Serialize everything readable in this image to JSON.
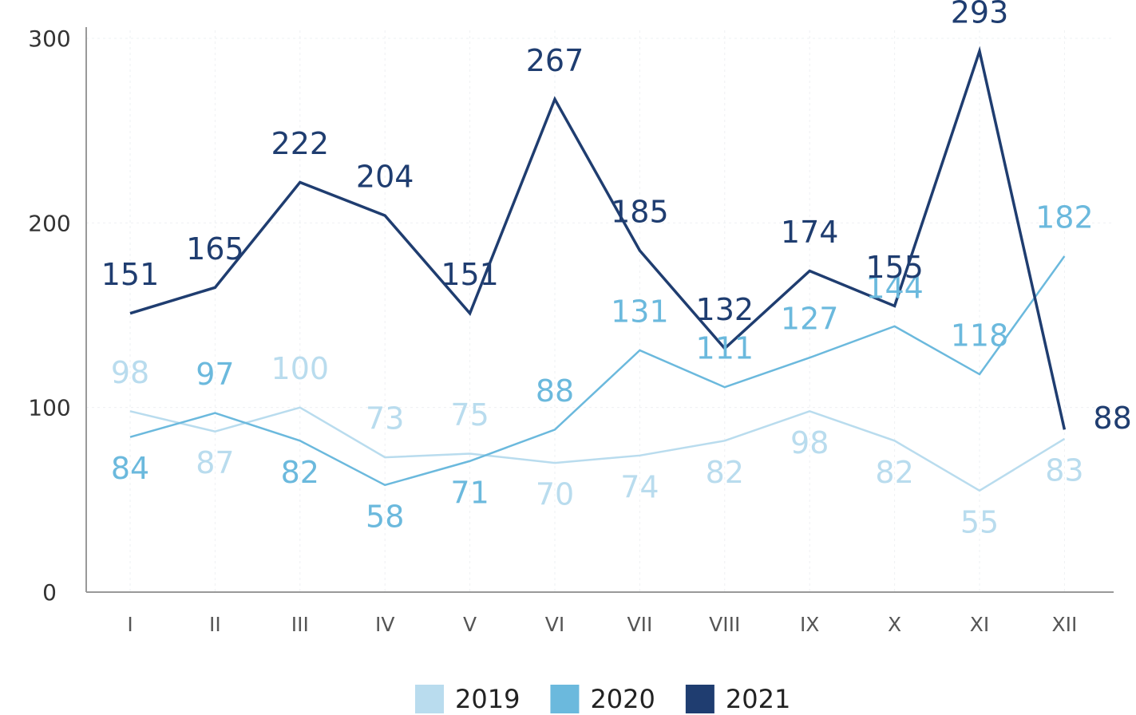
{
  "chart_data": {
    "type": "line",
    "categories": [
      "I",
      "II",
      "III",
      "IV",
      "V",
      "VI",
      "VII",
      "VIII",
      "IX",
      "X",
      "XI",
      "XII"
    ],
    "series": [
      {
        "name": "2019",
        "color": "#b9dcee",
        "values": [
          98,
          87,
          100,
          73,
          75,
          70,
          74,
          82,
          98,
          82,
          55,
          83
        ]
      },
      {
        "name": "2020",
        "color": "#6bb9dd",
        "values": [
          84,
          97,
          82,
          58,
          71,
          88,
          131,
          111,
          127,
          144,
          118,
          182
        ]
      },
      {
        "name": "2021",
        "color": "#1f3d70",
        "values": [
          151,
          165,
          222,
          204,
          151,
          267,
          185,
          132,
          174,
          155,
          293,
          88
        ]
      }
    ],
    "ylim": [
      0,
      300
    ],
    "yticks": [
      0,
      100,
      200,
      300
    ],
    "grid": true,
    "legend": "bottom"
  }
}
